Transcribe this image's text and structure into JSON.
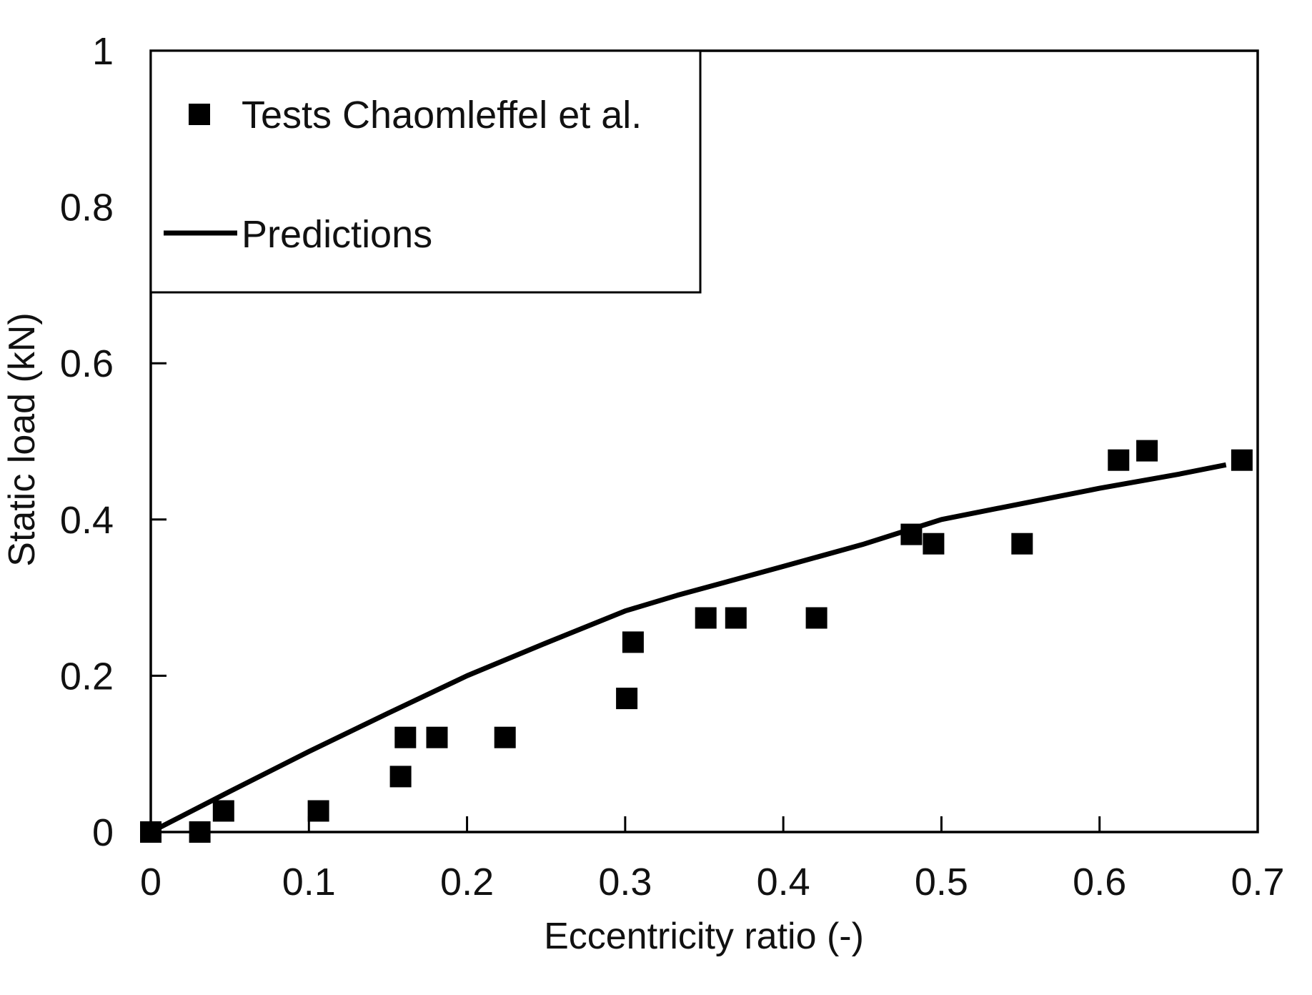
{
  "chart_data": {
    "type": "scatter",
    "title": "",
    "xlabel": "Eccentricity ratio (-)",
    "ylabel": "Static load (kN)",
    "xlim": [
      0,
      0.7
    ],
    "ylim": [
      0,
      1
    ],
    "x_ticks": [
      0,
      0.1,
      0.2,
      0.3,
      0.4,
      0.5,
      0.6,
      0.7
    ],
    "x_tick_labels": [
      "0",
      "0.1",
      "0.2",
      "0.3",
      "0.4",
      "0.5",
      "0.6",
      "0.7"
    ],
    "y_ticks": [
      0,
      0.2,
      0.4,
      0.6,
      0.8,
      1
    ],
    "y_tick_labels": [
      "0",
      "0.2",
      "0.4",
      "0.6",
      "0.8",
      "1"
    ],
    "grid": false,
    "legend_position": "top-left",
    "colors": {
      "marker": "#000000",
      "line": "#000000",
      "axis": "#000000"
    },
    "series": [
      {
        "name": "Tests Chaomleffel et al.",
        "kind": "scatter",
        "marker": "square",
        "points": [
          {
            "x": 0.0,
            "y": 0.0
          },
          {
            "x": 0.031,
            "y": 0.0
          },
          {
            "x": 0.046,
            "y": 0.027
          },
          {
            "x": 0.106,
            "y": 0.027
          },
          {
            "x": 0.158,
            "y": 0.071
          },
          {
            "x": 0.161,
            "y": 0.121
          },
          {
            "x": 0.181,
            "y": 0.121
          },
          {
            "x": 0.224,
            "y": 0.121
          },
          {
            "x": 0.301,
            "y": 0.171
          },
          {
            "x": 0.305,
            "y": 0.243
          },
          {
            "x": 0.351,
            "y": 0.274
          },
          {
            "x": 0.37,
            "y": 0.274
          },
          {
            "x": 0.421,
            "y": 0.274
          },
          {
            "x": 0.481,
            "y": 0.381
          },
          {
            "x": 0.495,
            "y": 0.369
          },
          {
            "x": 0.551,
            "y": 0.369
          },
          {
            "x": 0.612,
            "y": 0.476
          },
          {
            "x": 0.63,
            "y": 0.488
          },
          {
            "x": 0.69,
            "y": 0.476
          }
        ]
      },
      {
        "name": "Predictions",
        "kind": "line",
        "points": [
          {
            "x": 0.0,
            "y": 0.0
          },
          {
            "x": 0.05,
            "y": 0.052
          },
          {
            "x": 0.1,
            "y": 0.103
          },
          {
            "x": 0.15,
            "y": 0.152
          },
          {
            "x": 0.2,
            "y": 0.2
          },
          {
            "x": 0.25,
            "y": 0.242
          },
          {
            "x": 0.3,
            "y": 0.283
          },
          {
            "x": 0.333,
            "y": 0.303
          },
          {
            "x": 0.4,
            "y": 0.34
          },
          {
            "x": 0.45,
            "y": 0.368
          },
          {
            "x": 0.5,
            "y": 0.4
          },
          {
            "x": 0.55,
            "y": 0.42
          },
          {
            "x": 0.6,
            "y": 0.44
          },
          {
            "x": 0.65,
            "y": 0.458
          },
          {
            "x": 0.68,
            "y": 0.47
          }
        ]
      }
    ]
  }
}
